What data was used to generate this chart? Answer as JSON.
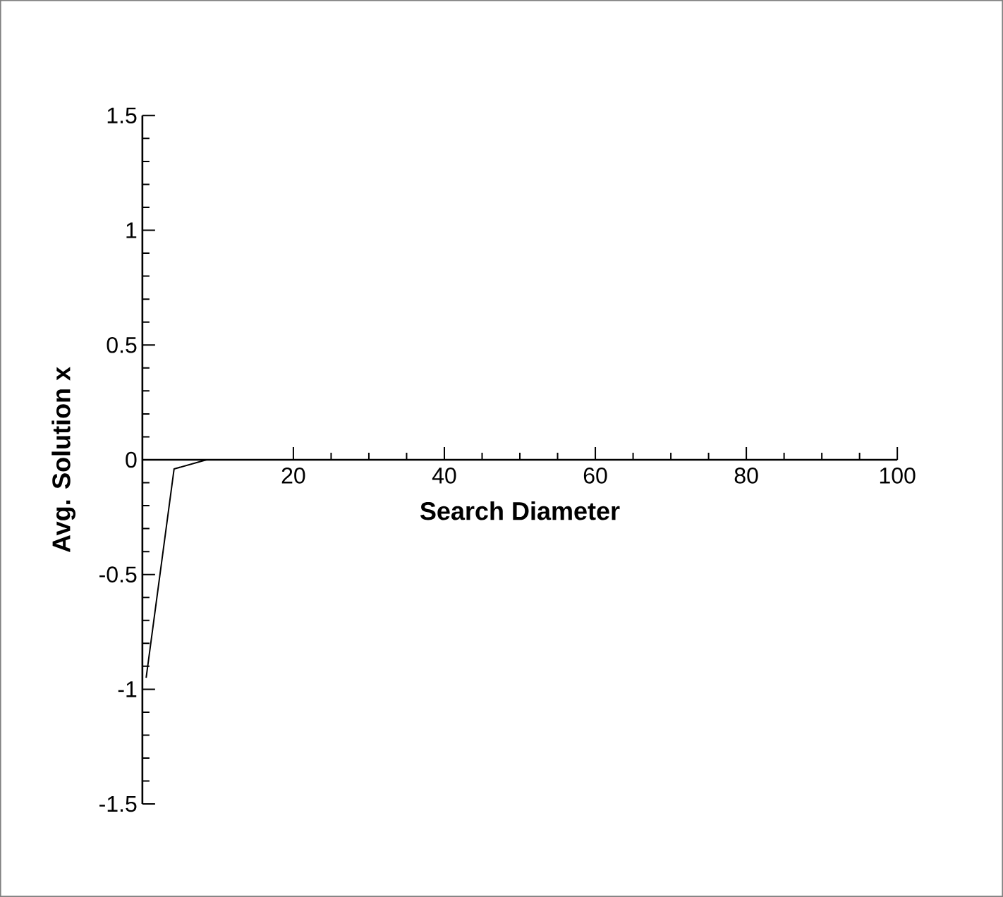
{
  "chart_data": {
    "type": "line",
    "xlabel": "Search Diameter",
    "ylabel": "Avg. Solution x",
    "x": [
      0.5,
      4.2,
      8.5
    ],
    "series": [
      {
        "color": "#000000",
        "values": [
          -0.95,
          -0.04,
          0
        ]
      }
    ],
    "xlim": [
      0,
      100
    ],
    "ylim": [
      -1.5,
      1.5
    ],
    "xticks": [
      20,
      40,
      60,
      80,
      100
    ],
    "yticks": [
      -1.5,
      -1,
      -0.5,
      0,
      0.5,
      1,
      1.5
    ],
    "marker": "none",
    "line_style": "solid"
  }
}
